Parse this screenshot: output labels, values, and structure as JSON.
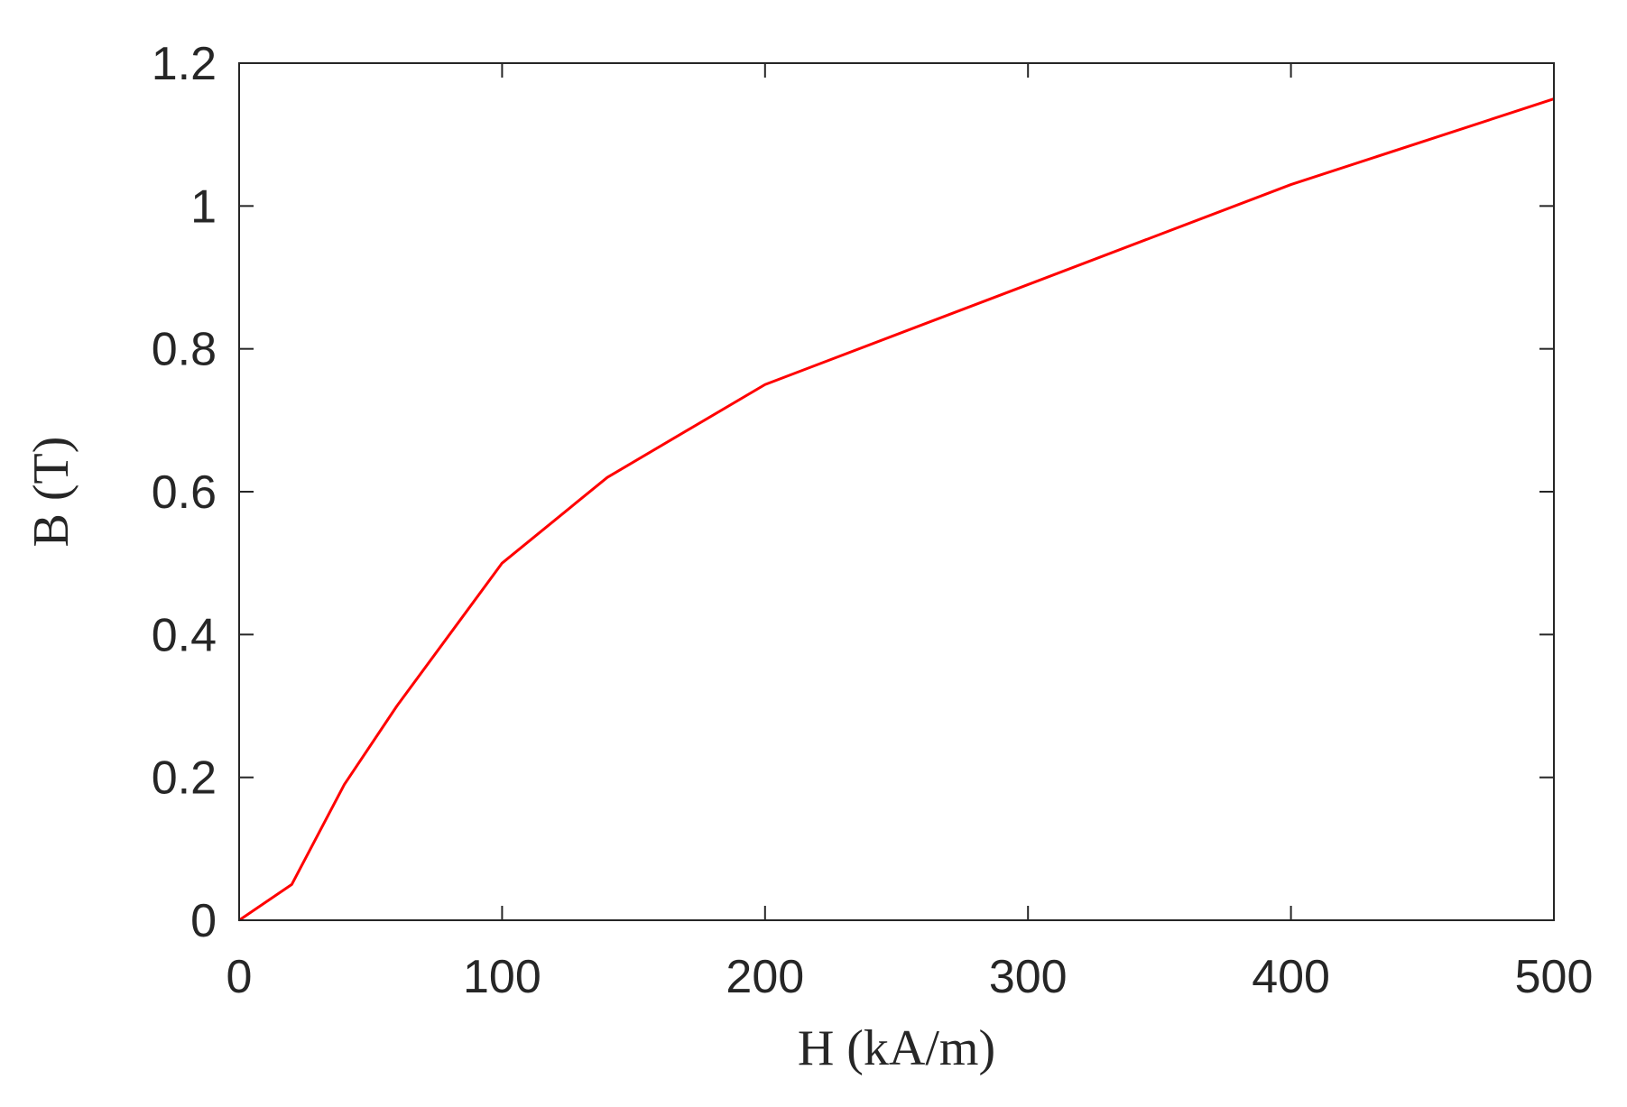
{
  "chart_data": {
    "type": "line",
    "title": "",
    "xlabel": "H (kA/m)",
    "ylabel": "B (T)",
    "xlim": [
      0,
      500
    ],
    "ylim": [
      0,
      1.2
    ],
    "xticks": [
      0,
      100,
      200,
      300,
      400,
      500
    ],
    "yticks": [
      0,
      0.2,
      0.4,
      0.6,
      0.8,
      1,
      1.2
    ],
    "xtick_labels": [
      "0",
      "100",
      "200",
      "300",
      "400",
      "500"
    ],
    "ytick_labels": [
      "0",
      "0.2",
      "0.4",
      "0.6",
      "0.8",
      "1",
      "1.2"
    ],
    "grid": false,
    "box": true,
    "series": [
      {
        "color": "#ff0000",
        "x": [
          0,
          20,
          40,
          60,
          100,
          140,
          200,
          300,
          400,
          500
        ],
        "y": [
          0,
          0.05,
          0.19,
          0.3,
          0.5,
          0.62,
          0.75,
          0.89,
          1.03,
          1.15
        ]
      }
    ]
  }
}
